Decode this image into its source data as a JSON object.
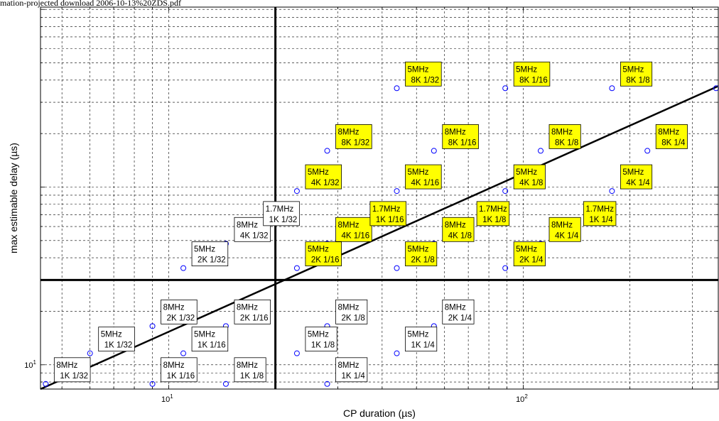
{
  "caption": "mation-projected download 2006-10-13%20ZDS.pdf",
  "chart_data": {
    "type": "scatter",
    "title": "",
    "xlabel": "CP duration (µs)",
    "ylabel": "max estimable delay (µs)",
    "x_scale": "log",
    "y_scale": "log",
    "xlim": [
      4.35,
      355
    ],
    "ylim": [
      7.3,
      1030
    ],
    "x_major_ticks": [
      10,
      100
    ],
    "y_major_ticks": [
      10
    ],
    "grid": true,
    "colors": {
      "marker": "#0000ff",
      "highlight_fill": "#ffff00",
      "plain_fill": "#ffffff",
      "line": "#000000"
    },
    "points": [
      {
        "x": 4.5,
        "y": 7.8,
        "label": [
          "8MHz",
          "1K 1/32"
        ],
        "highlight": false
      },
      {
        "x": 9.0,
        "y": 7.8,
        "label": [
          "8MHz",
          "1K 1/16"
        ],
        "highlight": false
      },
      {
        "x": 14.5,
        "y": 7.8,
        "label": [
          "8MHz",
          "1K 1/8"
        ],
        "highlight": false
      },
      {
        "x": 28.0,
        "y": 7.8,
        "label": [
          "8MHz",
          "1K 1/4"
        ],
        "highlight": false
      },
      {
        "x": 6.0,
        "y": 11.6,
        "label": [
          "5MHz",
          "1K 1/32"
        ],
        "highlight": false
      },
      {
        "x": 11.0,
        "y": 11.6,
        "label": [
          "5MHz",
          "1K 1/16"
        ],
        "highlight": false
      },
      {
        "x": 23.0,
        "y": 11.6,
        "label": [
          "5MHz",
          "1K 1/8"
        ],
        "highlight": false
      },
      {
        "x": 44.0,
        "y": 11.6,
        "label": [
          "5MHz",
          "1K 1/4"
        ],
        "highlight": false
      },
      {
        "x": 9.0,
        "y": 16.5,
        "label": [
          "8MHz",
          "2K 1/32"
        ],
        "highlight": false
      },
      {
        "x": 14.5,
        "y": 16.5,
        "label": [
          "8MHz",
          "2K 1/16"
        ],
        "highlight": false
      },
      {
        "x": 28.0,
        "y": 16.5,
        "label": [
          "8MHz",
          "2K 1/8"
        ],
        "highlight": false
      },
      {
        "x": 56.0,
        "y": 16.5,
        "label": [
          "8MHz",
          "2K 1/4"
        ],
        "highlight": false
      },
      {
        "x": 11.0,
        "y": 35.0,
        "label": [
          "5MHz",
          "2K 1/32"
        ],
        "highlight": false
      },
      {
        "x": 23.0,
        "y": 35.0,
        "label": [
          "5MHz",
          "2K 1/16"
        ],
        "highlight": true
      },
      {
        "x": 44.0,
        "y": 35.0,
        "label": [
          "5MHz",
          "2K 1/8"
        ],
        "highlight": true
      },
      {
        "x": 89.0,
        "y": 35.0,
        "label": [
          "5MHz",
          "2K 1/4"
        ],
        "highlight": true
      },
      {
        "x": 14.5,
        "y": 48.0,
        "label": [
          "8MHz",
          "4K 1/32"
        ],
        "highlight": false
      },
      {
        "x": 28.0,
        "y": 48.0,
        "label": [
          "8MHz",
          "4K 1/16"
        ],
        "highlight": true
      },
      {
        "x": 56.0,
        "y": 48.0,
        "label": [
          "8MHz",
          "4K 1/8"
        ],
        "highlight": true
      },
      {
        "x": 112.0,
        "y": 48.0,
        "label": [
          "8MHz",
          "4K 1/4"
        ],
        "highlight": true
      },
      {
        "x": 17.5,
        "y": 59.0,
        "label": [
          "1.7MHz",
          "1K 1/32"
        ],
        "highlight": false
      },
      {
        "x": 35.0,
        "y": 59.0,
        "label": [
          "1.7MHz",
          "1K 1/16"
        ],
        "highlight": true
      },
      {
        "x": 70.0,
        "y": 59.0,
        "label": [
          "1.7MHz",
          "1K 1/8"
        ],
        "highlight": true
      },
      {
        "x": 140.0,
        "y": 59.0,
        "label": [
          "1.7MHz",
          "1K 1/4"
        ],
        "highlight": true
      },
      {
        "x": 23.0,
        "y": 95.0,
        "label": [
          "5MHz",
          "4K 1/32"
        ],
        "highlight": true
      },
      {
        "x": 44.0,
        "y": 95.0,
        "label": [
          "5MHz",
          "4K 1/16"
        ],
        "highlight": true
      },
      {
        "x": 89.0,
        "y": 95.0,
        "label": [
          "5MHz",
          "4K 1/8"
        ],
        "highlight": true
      },
      {
        "x": 178.0,
        "y": 95.0,
        "label": [
          "5MHz",
          "4K 1/4"
        ],
        "highlight": true
      },
      {
        "x": 28.0,
        "y": 160.0,
        "label": [
          "8MHz",
          "8K 1/32"
        ],
        "highlight": true
      },
      {
        "x": 56.0,
        "y": 160.0,
        "label": [
          "8MHz",
          "8K 1/16"
        ],
        "highlight": true
      },
      {
        "x": 112.0,
        "y": 160.0,
        "label": [
          "8MHz",
          "8K 1/8"
        ],
        "highlight": true
      },
      {
        "x": 224.0,
        "y": 160.0,
        "label": [
          "8MHz",
          "8K 1/4"
        ],
        "highlight": true
      },
      {
        "x": 44.0,
        "y": 360.0,
        "label": [
          "5MHz",
          "8K 1/32"
        ],
        "highlight": true
      },
      {
        "x": 89.0,
        "y": 360.0,
        "label": [
          "5MHz",
          "8K 1/16"
        ],
        "highlight": true
      },
      {
        "x": 178.0,
        "y": 360.0,
        "label": [
          "5MHz",
          "8K 1/8"
        ],
        "highlight": true
      },
      {
        "x": 350.0,
        "y": 360.0,
        "label": [
          "5MHz",
          "8K 1/4"
        ],
        "highlight": true
      }
    ],
    "reference_lines": {
      "vertical_x": 20.0,
      "horizontal_y": 30.0,
      "diagonal": [
        {
          "x": 4.35,
          "y": 7.3
        },
        {
          "x": 355.0,
          "y": 370.0
        }
      ]
    }
  }
}
